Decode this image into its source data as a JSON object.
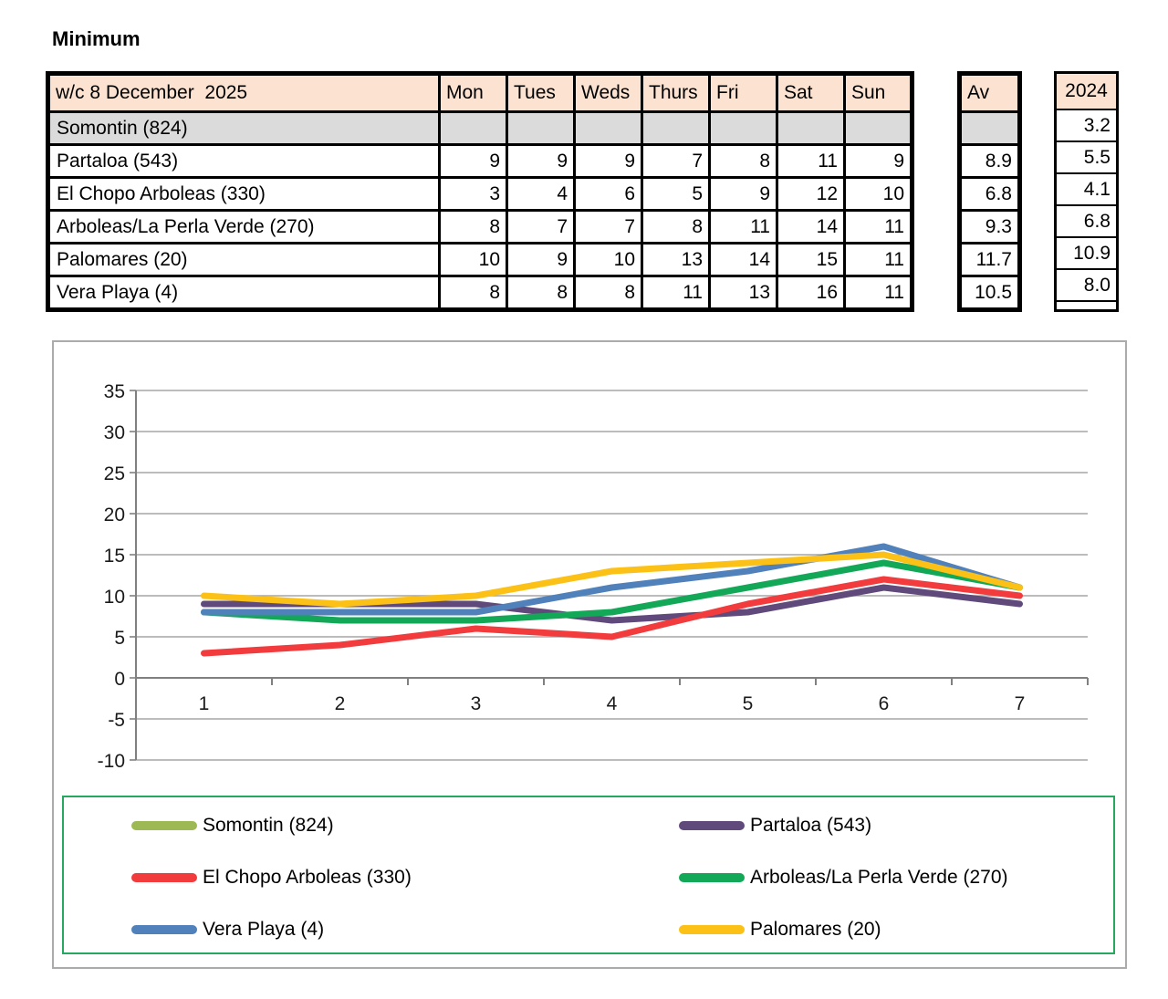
{
  "title": "Minimum",
  "table": {
    "week_label": "w/c 8 December  2025",
    "day_headers": [
      "Mon",
      "Tues",
      "Weds",
      "Thurs",
      "Fri",
      "Sat",
      "Sun"
    ],
    "avg_header": "Av",
    "year_header": "2024",
    "rows": [
      {
        "name": "Somontin (824)",
        "days": [
          "",
          "",
          "",
          "",
          "",
          "",
          ""
        ],
        "av": "",
        "year": "3.2",
        "shaded": true
      },
      {
        "name": "Partaloa (543)",
        "days": [
          9,
          9,
          9,
          7,
          8,
          11,
          9
        ],
        "av": "8.9",
        "year": "5.5",
        "shaded": false
      },
      {
        "name": "El Chopo Arboleas (330)",
        "days": [
          3,
          4,
          6,
          5,
          9,
          12,
          10
        ],
        "av": "6.8",
        "year": "4.1",
        "shaded": false
      },
      {
        "name": "Arboleas/La Perla Verde (270)",
        "days": [
          8,
          7,
          7,
          8,
          11,
          14,
          11
        ],
        "av": "9.3",
        "year": "6.8",
        "shaded": false
      },
      {
        "name": "Palomares (20)",
        "days": [
          10,
          9,
          10,
          13,
          14,
          15,
          11
        ],
        "av": "11.7",
        "year": "10.9",
        "shaded": false
      },
      {
        "name": "Vera Playa (4)",
        "days": [
          8,
          8,
          8,
          11,
          13,
          16,
          11
        ],
        "av": "10.5",
        "year": "8.0",
        "shaded": false
      }
    ]
  },
  "chart_data": {
    "type": "line",
    "x": [
      1,
      2,
      3,
      4,
      5,
      6,
      7
    ],
    "series": [
      {
        "name": "Somontin (824)",
        "color": "#9CB953",
        "values": []
      },
      {
        "name": "Partaloa (543)",
        "color": "#604A7B",
        "values": [
          9,
          9,
          9,
          7,
          8,
          11,
          9
        ]
      },
      {
        "name": "El Chopo Arboleas (330)",
        "color": "#F13B3D",
        "values": [
          3,
          4,
          6,
          5,
          9,
          12,
          10
        ]
      },
      {
        "name": "Arboleas/La Perla Verde (270)",
        "color": "#12A857",
        "values": [
          8,
          7,
          7,
          8,
          11,
          14,
          11
        ]
      },
      {
        "name": "Vera Playa (4)",
        "color": "#5181BA",
        "values": [
          8,
          8,
          8,
          11,
          13,
          16,
          11
        ]
      },
      {
        "name": "Palomares (20)",
        "color": "#FCC117",
        "values": [
          10,
          9,
          10,
          13,
          14,
          15,
          11
        ]
      }
    ],
    "ylim": [
      -10,
      35
    ],
    "ytick_step": 5,
    "grid": true,
    "legend_position": "bottom",
    "legend_columns": 2
  },
  "colors": {
    "header_fill": "#FBE2D1",
    "shaded_row_fill": "#DBDBDB",
    "table_border": "#000000",
    "gridline": "#A6A6A6",
    "axis": "#808080",
    "chart_box_border": "#ABABAB",
    "legend_border": "#27A85F"
  }
}
